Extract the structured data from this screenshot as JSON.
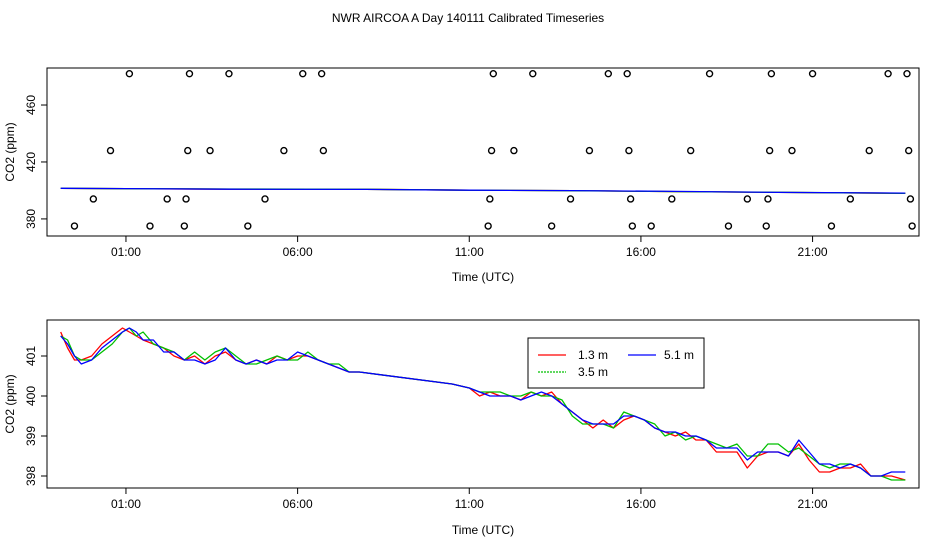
{
  "title": "NWR AIRCOA A  Day 140111  Calibrated Timeseries",
  "chart_data": [
    {
      "type": "scatter",
      "panel": "top",
      "xlabel": "Time (UTC)",
      "ylabel": "CO2 (ppm)",
      "xlim": [
        -1.3,
        24.1
      ],
      "ylim": [
        368,
        486
      ],
      "x_ticks": [
        1,
        6,
        11,
        16,
        21
      ],
      "x_tick_labels": [
        "01:00",
        "06:00",
        "11:00",
        "16:00",
        "21:00"
      ],
      "y_ticks": [
        380,
        420,
        460
      ],
      "y_tick_labels": [
        "380",
        "420",
        "460"
      ],
      "grid": false,
      "calibration_points": [
        {
          "x": -0.5,
          "y": 375
        },
        {
          "x": 0.05,
          "y": 394
        },
        {
          "x": 0.55,
          "y": 428
        },
        {
          "x": 1.1,
          "y": 482
        },
        {
          "x": 1.7,
          "y": 375
        },
        {
          "x": 2.2,
          "y": 394
        },
        {
          "x": 2.7,
          "y": 375
        },
        {
          "x": 2.75,
          "y": 394
        },
        {
          "x": 2.8,
          "y": 428
        },
        {
          "x": 2.85,
          "y": 482
        },
        {
          "x": 3.45,
          "y": 428
        },
        {
          "x": 4.0,
          "y": 482
        },
        {
          "x": 4.55,
          "y": 375
        },
        {
          "x": 5.05,
          "y": 394
        },
        {
          "x": 5.6,
          "y": 428
        },
        {
          "x": 6.15,
          "y": 482
        },
        {
          "x": 6.7,
          "y": 482
        },
        {
          "x": 6.75,
          "y": 428
        },
        {
          "x": 11.55,
          "y": 375
        },
        {
          "x": 11.6,
          "y": 394
        },
        {
          "x": 11.65,
          "y": 428
        },
        {
          "x": 11.7,
          "y": 482
        },
        {
          "x": 12.3,
          "y": 428
        },
        {
          "x": 12.85,
          "y": 482
        },
        {
          "x": 13.4,
          "y": 375
        },
        {
          "x": 13.95,
          "y": 394
        },
        {
          "x": 14.5,
          "y": 428
        },
        {
          "x": 15.05,
          "y": 482
        },
        {
          "x": 15.6,
          "y": 482
        },
        {
          "x": 15.65,
          "y": 428
        },
        {
          "x": 15.7,
          "y": 394
        },
        {
          "x": 15.75,
          "y": 375
        },
        {
          "x": 16.3,
          "y": 375
        },
        {
          "x": 16.9,
          "y": 394
        },
        {
          "x": 17.45,
          "y": 428
        },
        {
          "x": 18.0,
          "y": 482
        },
        {
          "x": 18.55,
          "y": 375
        },
        {
          "x": 19.1,
          "y": 394
        },
        {
          "x": 19.65,
          "y": 375
        },
        {
          "x": 19.7,
          "y": 394
        },
        {
          "x": 19.75,
          "y": 428
        },
        {
          "x": 19.8,
          "y": 482
        },
        {
          "x": 20.4,
          "y": 428
        },
        {
          "x": 21.0,
          "y": 482
        },
        {
          "x": 21.55,
          "y": 375
        },
        {
          "x": 22.1,
          "y": 394
        },
        {
          "x": 22.65,
          "y": 428
        },
        {
          "x": 23.2,
          "y": 482
        },
        {
          "x": 23.75,
          "y": 482
        },
        {
          "x": 23.8,
          "y": 428
        },
        {
          "x": 23.85,
          "y": 394
        },
        {
          "x": 23.9,
          "y": 375
        }
      ],
      "line_series": [
        {
          "color": "#ff0000",
          "x": [
            -0.9,
            1.0,
            4.0,
            8.0,
            11.0,
            14.0,
            17.0,
            20.0,
            23.7
          ],
          "y": [
            401.4,
            401.2,
            400.9,
            400.8,
            400.2,
            399.9,
            399.2,
            398.6,
            398.0
          ]
        },
        {
          "color": "#00c000",
          "x": [
            -0.9,
            1.0,
            4.0,
            8.0,
            11.0,
            14.0,
            17.0,
            20.0,
            23.7
          ],
          "y": [
            401.5,
            401.2,
            401.0,
            400.8,
            400.2,
            399.8,
            399.2,
            398.7,
            398.0
          ]
        },
        {
          "color": "#0000ff",
          "x": [
            -0.9,
            1.0,
            4.0,
            8.0,
            11.0,
            14.0,
            17.0,
            20.0,
            23.7
          ],
          "y": [
            401.5,
            401.3,
            400.9,
            400.7,
            400.2,
            399.9,
            399.3,
            398.6,
            398.1
          ]
        }
      ]
    },
    {
      "type": "line",
      "panel": "bottom",
      "xlabel": "Time (UTC)",
      "ylabel": "CO2 (ppm)",
      "xlim": [
        -1.3,
        24.1
      ],
      "ylim": [
        397.7,
        401.9
      ],
      "x_ticks": [
        1,
        6,
        11,
        16,
        21
      ],
      "x_tick_labels": [
        "01:00",
        "06:00",
        "11:00",
        "16:00",
        "21:00"
      ],
      "y_ticks": [
        398,
        399,
        400,
        401
      ],
      "y_tick_labels": [
        "398",
        "399",
        "400",
        "401"
      ],
      "grid": false,
      "legend": "inside-top-right",
      "series": [
        {
          "name": "1.3 m",
          "color": "#ff0000",
          "x": [
            -0.9,
            -0.7,
            -0.5,
            -0.3,
            0.0,
            0.3,
            0.6,
            0.9,
            1.1,
            1.3,
            1.5,
            1.8,
            2.1,
            2.4,
            2.7,
            3.0,
            3.3,
            3.6,
            3.9,
            4.2,
            4.5,
            4.8,
            5.1,
            5.4,
            5.7,
            6.0,
            6.3,
            6.6,
            6.9,
            7.2,
            7.5,
            7.8,
            10.5,
            11.0,
            11.3,
            11.6,
            11.9,
            12.2,
            12.5,
            12.8,
            13.1,
            13.4,
            13.7,
            14.0,
            14.3,
            14.6,
            14.9,
            15.2,
            15.5,
            15.8,
            16.1,
            16.4,
            16.7,
            17.0,
            17.3,
            17.6,
            17.9,
            18.2,
            18.5,
            18.8,
            19.1,
            19.4,
            19.7,
            20.0,
            20.3,
            20.6,
            20.9,
            21.2,
            21.5,
            21.8,
            22.1,
            22.4,
            22.7,
            23.0,
            23.3,
            23.7
          ],
          "y": [
            401.6,
            401.2,
            400.9,
            400.9,
            401.0,
            401.3,
            401.5,
            401.7,
            401.6,
            401.5,
            401.4,
            401.3,
            401.2,
            401.0,
            400.9,
            401.0,
            400.8,
            401.0,
            401.1,
            400.9,
            400.8,
            400.9,
            400.8,
            401.0,
            400.9,
            401.0,
            401.0,
            400.9,
            400.8,
            400.7,
            400.6,
            400.6,
            400.3,
            400.2,
            400.0,
            400.1,
            400.0,
            400.0,
            399.9,
            400.1,
            400.0,
            400.1,
            399.8,
            399.6,
            399.4,
            399.2,
            399.4,
            399.2,
            399.4,
            399.5,
            399.4,
            399.2,
            399.1,
            399.0,
            399.1,
            398.9,
            398.9,
            398.6,
            398.6,
            398.6,
            398.2,
            398.5,
            398.6,
            398.6,
            398.5,
            398.8,
            398.4,
            398.1,
            398.1,
            398.2,
            398.2,
            398.3,
            398.0,
            398.0,
            398.0,
            397.9
          ]
        },
        {
          "name": "3.5 m",
          "color": "#00c000",
          "x": [
            -0.9,
            -0.7,
            -0.5,
            -0.3,
            0.0,
            0.3,
            0.6,
            0.9,
            1.1,
            1.3,
            1.5,
            1.8,
            2.1,
            2.4,
            2.7,
            3.0,
            3.3,
            3.6,
            3.9,
            4.2,
            4.5,
            4.8,
            5.1,
            5.4,
            5.7,
            6.0,
            6.3,
            6.6,
            6.9,
            7.2,
            7.5,
            7.8,
            10.5,
            11.0,
            11.3,
            11.6,
            11.9,
            12.2,
            12.5,
            12.8,
            13.1,
            13.4,
            13.7,
            14.0,
            14.3,
            14.6,
            14.9,
            15.2,
            15.5,
            15.8,
            16.1,
            16.4,
            16.7,
            17.0,
            17.3,
            17.6,
            17.9,
            18.2,
            18.5,
            18.8,
            19.1,
            19.4,
            19.7,
            20.0,
            20.3,
            20.6,
            20.9,
            21.2,
            21.5,
            21.8,
            22.1,
            22.4,
            22.7,
            23.0,
            23.3,
            23.7
          ],
          "y": [
            401.5,
            401.4,
            401.0,
            400.9,
            400.9,
            401.1,
            401.3,
            401.6,
            401.7,
            401.5,
            401.6,
            401.3,
            401.2,
            401.1,
            400.9,
            401.1,
            400.9,
            401.1,
            401.2,
            401.0,
            400.8,
            400.8,
            400.9,
            401.0,
            400.9,
            400.9,
            401.1,
            400.9,
            400.8,
            400.8,
            400.6,
            400.6,
            400.3,
            400.2,
            400.1,
            400.1,
            400.1,
            400.0,
            400.0,
            400.1,
            400.0,
            400.0,
            399.9,
            399.5,
            399.3,
            399.3,
            399.3,
            399.2,
            399.6,
            399.5,
            399.4,
            399.3,
            399.0,
            399.1,
            398.9,
            399.0,
            398.9,
            398.8,
            398.7,
            398.8,
            398.5,
            398.5,
            398.8,
            398.8,
            398.6,
            398.7,
            398.5,
            398.3,
            398.2,
            398.3,
            398.3,
            398.2,
            398.0,
            398.0,
            397.9,
            397.9
          ]
        },
        {
          "name": "5.1 m",
          "color": "#0000ff",
          "x": [
            -0.9,
            -0.7,
            -0.5,
            -0.3,
            0.0,
            0.3,
            0.6,
            0.9,
            1.1,
            1.3,
            1.5,
            1.8,
            2.1,
            2.4,
            2.7,
            3.0,
            3.3,
            3.6,
            3.9,
            4.2,
            4.5,
            4.8,
            5.1,
            5.4,
            5.7,
            6.0,
            6.3,
            6.6,
            6.9,
            7.2,
            7.5,
            7.8,
            10.5,
            11.0,
            11.3,
            11.6,
            11.9,
            12.2,
            12.5,
            12.8,
            13.1,
            13.4,
            13.7,
            14.0,
            14.3,
            14.6,
            14.9,
            15.2,
            15.5,
            15.8,
            16.1,
            16.4,
            16.7,
            17.0,
            17.3,
            17.6,
            17.9,
            18.2,
            18.5,
            18.8,
            19.1,
            19.4,
            19.7,
            20.0,
            20.3,
            20.6,
            20.9,
            21.2,
            21.5,
            21.8,
            22.1,
            22.4,
            22.7,
            23.0,
            23.3,
            23.7
          ],
          "y": [
            401.5,
            401.3,
            401.0,
            400.8,
            400.9,
            401.2,
            401.4,
            401.6,
            401.7,
            401.6,
            401.4,
            401.4,
            401.1,
            401.1,
            400.9,
            400.9,
            400.8,
            400.9,
            401.2,
            400.9,
            400.8,
            400.9,
            400.8,
            400.9,
            400.9,
            401.1,
            401.0,
            400.9,
            400.8,
            400.7,
            400.6,
            400.6,
            400.3,
            400.2,
            400.1,
            400.0,
            400.0,
            400.0,
            399.9,
            400.0,
            400.1,
            400.0,
            399.8,
            399.6,
            399.4,
            399.3,
            399.3,
            399.3,
            399.5,
            399.5,
            399.4,
            399.2,
            399.1,
            399.1,
            399.0,
            399.0,
            398.9,
            398.7,
            398.7,
            398.7,
            398.4,
            398.6,
            398.6,
            398.6,
            398.5,
            398.9,
            398.6,
            398.3,
            398.3,
            398.2,
            398.3,
            398.2,
            398.0,
            398.0,
            398.1,
            398.1
          ]
        }
      ]
    }
  ]
}
